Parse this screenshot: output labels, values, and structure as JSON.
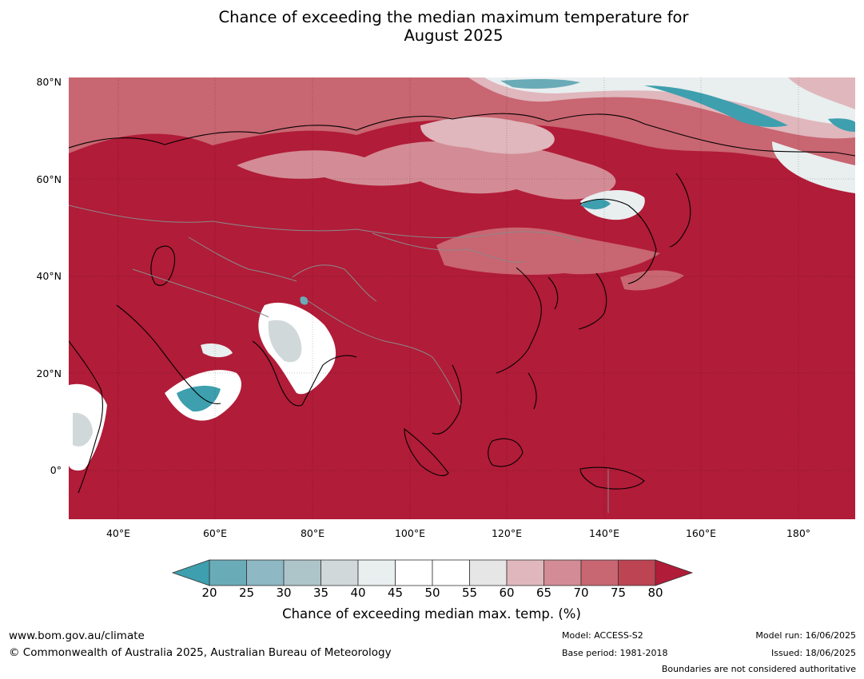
{
  "title": {
    "line1": "Chance of exceeding the median maximum temperature for",
    "line2": "August 2025"
  },
  "map": {
    "region": "Asia / Western Pacific",
    "latitude_labels": [
      "80°N",
      "60°N",
      "40°N",
      "20°N",
      "0°"
    ],
    "longitude_labels": [
      "40°E",
      "60°E",
      "80°E",
      "100°E",
      "120°E",
      "140°E",
      "160°E",
      "180°"
    ],
    "dominant_category": "80",
    "colors": {
      "land_and_ocean_dominant": "#b11c38",
      "below_20": "#3e9fae",
      "coastline": "#000000",
      "boundaries": "#8a8a8a"
    }
  },
  "colorbar": {
    "ticks": [
      "20",
      "25",
      "30",
      "35",
      "40",
      "45",
      "50",
      "55",
      "60",
      "65",
      "70",
      "75",
      "80"
    ],
    "colors": [
      "#6aabb8",
      "#8db8c4",
      "#adc4c9",
      "#d1d8da",
      "#e9eeef",
      "#ffffff",
      "#ffffff",
      "#e6e6e6",
      "#dfb7bd",
      "#d38c95",
      "#c86671",
      "#bd4452"
    ],
    "under_color": "#3e9fae",
    "over_color": "#b11c38",
    "label": "Chance of exceeding median max. temp. (%)"
  },
  "footer": {
    "website": "www.bom.gov.au/climate",
    "copyright": "© Commonwealth of Australia 2025, Australian Bureau of Meteorology",
    "model": "Model: ACCESS-S2",
    "base_period": "Base period: 1981-2018",
    "model_run": "Model run: 16/06/2025",
    "issued": "Issued: 18/06/2025",
    "disclaimer": "Boundaries are not considered authoritative"
  }
}
